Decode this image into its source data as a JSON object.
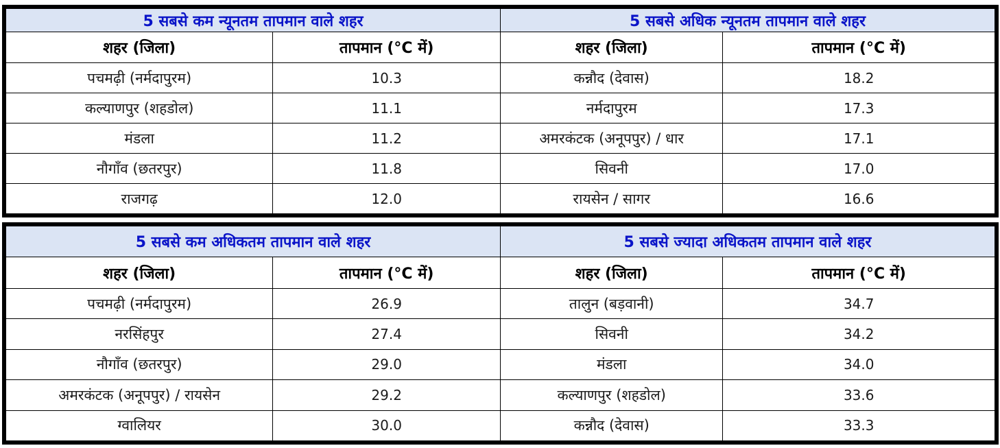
{
  "tables": [
    {
      "title": "5 सबसे कम न्यूनतम तापमान वाले शहर",
      "city_header": "शहर (जिला)",
      "temp_header": "तापमान (°C में)",
      "rows": [
        {
          "city": "पचमढ़ी (नर्मदापुरम)",
          "temp": "10.3"
        },
        {
          "city": "कल्याणपुर (शहडोल)",
          "temp": "11.1"
        },
        {
          "city": "मंडला",
          "temp": "11.2"
        },
        {
          "city": "नौगाँव (छतरपुर)",
          "temp": "11.8"
        },
        {
          "city": "राजगढ़",
          "temp": "12.0"
        }
      ]
    },
    {
      "title": "5 सबसे अधिक न्यूनतम तापमान वाले शहर",
      "city_header": "शहर (जिला)",
      "temp_header": "तापमान (°C में)",
      "rows": [
        {
          "city": "कन्नौद (देवास)",
          "temp": "18.2"
        },
        {
          "city": "नर्मदापुरम",
          "temp": "17.3"
        },
        {
          "city": "अमरकंटक (अनूपपुर) / धार",
          "temp": "17.1"
        },
        {
          "city": "सिवनी",
          "temp": "17.0"
        },
        {
          "city": "रायसेन / सागर",
          "temp": "16.6"
        }
      ]
    },
    {
      "title": "5 सबसे कम अधिकतम तापमान वाले शहर",
      "city_header": "शहर (जिला)",
      "temp_header": "तापमान (°C में)",
      "rows": [
        {
          "city": "पचमढ़ी (नर्मदापुरम)",
          "temp": "26.9"
        },
        {
          "city": "नरसिंहपुर",
          "temp": "27.4"
        },
        {
          "city": "नौगाँव (छतरपुर)",
          "temp": "29.0"
        },
        {
          "city": "अमरकंटक (अनूपपुर) / रायसेन",
          "temp": "29.2"
        },
        {
          "city": "ग्वालियर",
          "temp": "30.0"
        }
      ]
    },
    {
      "title": "5 सबसे ज्यादा अधिकतम तापमान वाले शहर",
      "city_header": "शहर (जिला)",
      "temp_header": "तापमान (°C में)",
      "rows": [
        {
          "city": "तालुन (बड़वानी)",
          "temp": "34.7"
        },
        {
          "city": "सिवनी",
          "temp": "34.2"
        },
        {
          "city": "मंडला",
          "temp": "34.0"
        },
        {
          "city": "कल्याणपुर (शहडोल)",
          "temp": "33.6"
        },
        {
          "city": "कन्नौद (देवास)",
          "temp": "33.3"
        }
      ]
    }
  ],
  "colors": {
    "title_background": "#dbe4f4",
    "title_text": "#0a14c8",
    "border": "#000000"
  }
}
